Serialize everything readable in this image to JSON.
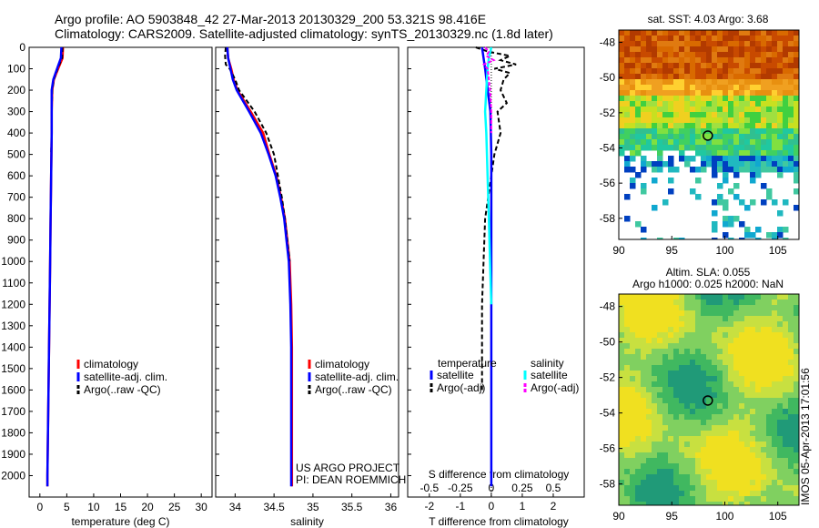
{
  "title_line1": "Argo profile: AO 5903848_42 27-Mar-2013 20130329_200 53.321S 98.416E",
  "title_line2": "Climatology: CARS2009. Satellite-adjusted climatology: synTS_20130329.nc (1.8d later)",
  "colors": {
    "climatology": "#ff0000",
    "satellite": "#0000ff",
    "argo": "#000000",
    "sal_satellite": "#00ffff",
    "sal_argo": "#ff00ff"
  },
  "chart_data": [
    {
      "type": "line",
      "id": "temperature",
      "xlabel": "temperature (deg C)",
      "xlim": [
        -2,
        32
      ],
      "ylim": [
        0,
        2100
      ],
      "xticks": [
        0,
        5,
        10,
        15,
        20,
        25,
        30
      ],
      "yticks": [
        0,
        100,
        200,
        300,
        400,
        500,
        600,
        700,
        800,
        900,
        1000,
        1100,
        1200,
        1300,
        1400,
        1500,
        1600,
        1700,
        1800,
        1900,
        2000
      ],
      "legend": [
        "climatology",
        "satellite-adj. clim.",
        "Argo(..raw -QC)"
      ],
      "series": [
        {
          "name": "climatology",
          "depth": [
            0,
            50,
            100,
            150,
            200,
            300,
            400,
            600,
            800,
            1000,
            1200,
            1400,
            1600,
            1800,
            2000,
            2050
          ],
          "values": [
            4.3,
            4.2,
            3.4,
            2.6,
            2.3,
            2.2,
            2.2,
            2.1,
            2.0,
            1.9,
            1.8,
            1.7,
            1.6,
            1.5,
            1.4,
            1.4
          ]
        },
        {
          "name": "satellite-adj. clim.",
          "depth": [
            0,
            50,
            100,
            150,
            200,
            300,
            400,
            600,
            800,
            1000,
            1200,
            1400,
            1600,
            1800,
            2000,
            2050
          ],
          "values": [
            4.0,
            3.9,
            3.2,
            2.5,
            2.2,
            2.2,
            2.2,
            2.1,
            2.0,
            1.9,
            1.8,
            1.7,
            1.6,
            1.5,
            1.4,
            1.4
          ]
        },
        {
          "name": "Argo(..raw -QC)",
          "depth": [
            0,
            50,
            100,
            150,
            200,
            300,
            400,
            500
          ],
          "values": [
            4.2,
            4.1,
            3.3,
            2.6,
            2.3,
            2.2,
            2.2,
            2.1
          ]
        }
      ]
    },
    {
      "type": "line",
      "id": "salinity",
      "xlabel": "salinity",
      "xlim": [
        33.75,
        36.1
      ],
      "ylim": [
        0,
        2100
      ],
      "xticks": [
        34,
        34.5,
        35,
        35.5,
        36
      ],
      "legend": [
        "climatology",
        "satellite-adj. clim.",
        "Argo(..raw -QC)"
      ],
      "project": "US ARGO PROJECT",
      "pi": "PI: DEAN ROEMMICH",
      "series": [
        {
          "name": "climatology",
          "depth": [
            0,
            50,
            100,
            150,
            200,
            300,
            400,
            500,
            600,
            700,
            800,
            900,
            1000,
            1200,
            1400,
            1600,
            1800,
            2000,
            2050
          ],
          "values": [
            33.9,
            33.91,
            33.95,
            33.98,
            34.03,
            34.2,
            34.36,
            34.44,
            34.53,
            34.59,
            34.64,
            34.67,
            34.7,
            34.72,
            34.73,
            34.73,
            34.73,
            34.73,
            34.73
          ]
        },
        {
          "name": "satellite-adj. clim.",
          "depth": [
            0,
            50,
            100,
            150,
            200,
            300,
            400,
            500,
            600,
            700,
            800,
            900,
            1000,
            1200,
            1400,
            1600,
            1800,
            2000,
            2050
          ],
          "values": [
            33.9,
            33.91,
            33.94,
            33.97,
            34.02,
            34.18,
            34.33,
            34.43,
            34.52,
            34.58,
            34.63,
            34.66,
            34.69,
            34.71,
            34.72,
            34.72,
            34.72,
            34.72,
            34.72
          ]
        },
        {
          "name": "Argo(..raw -QC)",
          "depth": [
            0,
            40,
            80,
            100,
            150,
            200,
            300,
            400,
            500,
            600,
            700,
            800,
            900,
            1000
          ],
          "values": [
            33.88,
            33.87,
            33.88,
            33.93,
            34.0,
            34.05,
            34.25,
            34.4,
            34.5,
            34.55,
            34.6,
            34.64,
            34.67,
            34.7
          ]
        }
      ]
    },
    {
      "type": "line",
      "id": "differences",
      "xlabel_bottom": "T difference from climatology",
      "xlabel_top": "S difference from climatology",
      "xlim": [
        -2.7,
        3.0
      ],
      "ylim": [
        0,
        2100
      ],
      "xticks_T": [
        -2,
        -1,
        0,
        1,
        2
      ],
      "xticks_S": [
        -0.5,
        -0.25,
        0,
        0.25,
        0.5
      ],
      "legend_temperature_title": "temperature",
      "legend_salinity_title": "salinity",
      "legend_temperature": [
        "satellite",
        "Argo(-adj)"
      ],
      "legend_salinity": [
        "satellite",
        "Argo(-adj)"
      ],
      "series": [
        {
          "name": "T satellite",
          "depth": [
            0,
            100,
            300,
            500,
            800,
            1200,
            1600,
            2000,
            2050
          ],
          "values": [
            -0.3,
            -0.2,
            -0.03,
            0,
            0,
            0,
            0,
            0,
            0
          ]
        },
        {
          "name": "T Argo(-adj)",
          "depth": [
            0,
            20,
            40,
            60,
            80,
            100,
            120,
            150,
            200,
            260,
            300,
            400,
            500,
            600,
            800,
            1000,
            1200,
            1400,
            1600
          ],
          "values": [
            -0.5,
            -0.1,
            0.6,
            0.3,
            0.8,
            0.1,
            0.6,
            0.4,
            0.3,
            0.5,
            0.2,
            0.3,
            0.1,
            0,
            -0.2,
            -0.25,
            -0.3,
            -0.3,
            -0.3
          ]
        },
        {
          "name": "S satellite",
          "depth": [
            0,
            50,
            100,
            200,
            300,
            400,
            600,
            800,
            1000,
            1200
          ],
          "values": [
            0,
            -0.02,
            -0.03,
            -0.04,
            -0.05,
            -0.04,
            -0.03,
            -0.02,
            -0.01,
            0
          ]
        },
        {
          "name": "S Argo(-adj)",
          "depth": [
            0,
            20,
            40,
            60,
            80,
            100,
            150,
            200,
            300,
            400
          ],
          "values": [
            -0.05,
            -0.02,
            -0.04,
            0.02,
            -0.06,
            -0.03,
            -0.02,
            -0.01,
            0,
            0
          ]
        }
      ]
    },
    {
      "type": "heatmap",
      "id": "sst_map",
      "title": "sat. SST: 4.03 Argo: 3.68",
      "xticks": [
        90,
        95,
        100,
        105
      ],
      "yticks": [
        -48,
        -50,
        -52,
        -54,
        -56,
        -58
      ],
      "marker": [
        98.4,
        -53.3
      ]
    },
    {
      "type": "heatmap",
      "id": "sla_map",
      "title_line1": "Altim. SLA: 0.055",
      "title_line2": "Argo h1000: 0.025 h2000: NaN",
      "xticks": [
        90,
        95,
        100,
        105
      ],
      "yticks": [
        -48,
        -50,
        -52,
        -54,
        -56,
        -58
      ],
      "marker": [
        98.4,
        -53.3
      ]
    }
  ],
  "credit": "IMOS 05-Apr-2013 17:01:56"
}
